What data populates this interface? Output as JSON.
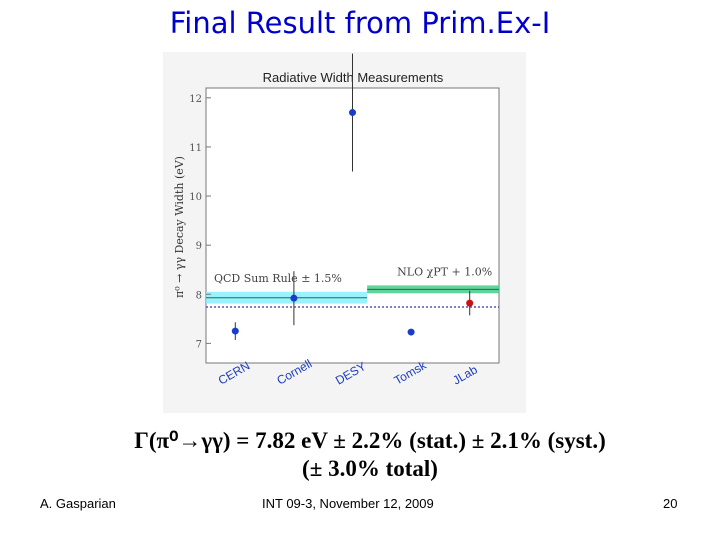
{
  "slide": {
    "title": "Final Result from Prim.Ex-I",
    "result_line_1": "Γ(π⁰→γγ) = 7.82 eV ± 2.2% (stat.) ± 2.1% (syst.)",
    "result_line_2": "(± 3.0% total)",
    "footer_author": "A. Gasparian",
    "footer_event": "INT 09-3, November 12, 2009",
    "footer_page": "20"
  },
  "chart_data": {
    "type": "scatter",
    "title": "Radiative Width Measurements",
    "ylabel": "π⁰ → γγ Decay Width (eV)",
    "ylim": [
      6.6,
      12.2
    ],
    "yticks": [
      7,
      8,
      9,
      10,
      11,
      12
    ],
    "categories": [
      "CERN",
      "Cornell",
      "DESY",
      "Tomsk",
      "JLab"
    ],
    "points": [
      {
        "category": "CERN",
        "value": 7.25,
        "err_low": 0.18,
        "err_high": 0.18,
        "color": "#1a3ccc"
      },
      {
        "category": "Cornell",
        "value": 7.92,
        "err_low": 0.55,
        "err_high": 0.55,
        "color": "#1a3ccc"
      },
      {
        "category": "DESY",
        "value": 11.7,
        "err_low": 1.2,
        "err_high": 1.2,
        "color": "#1a3ccc"
      },
      {
        "category": "Tomsk",
        "value": 7.23,
        "err_low": 0,
        "err_high": 0,
        "color": "#1a3ccc"
      },
      {
        "category": "JLab",
        "value": 7.82,
        "err_low": 0.25,
        "err_high": 0.25,
        "color": "#cc1111"
      }
    ],
    "bands": [
      {
        "label": "QCD Sum Rule ± 1.5%",
        "center": 7.93,
        "half_width": 0.12,
        "from": 0,
        "to": 2.75,
        "color": "#88eeff"
      },
      {
        "label": "NLO χPT + 1.0%",
        "center": 8.1,
        "half_width": 0.08,
        "from": 2.75,
        "to": 5,
        "color": "#44cc88"
      }
    ],
    "reference_line": {
      "value": 7.74,
      "style": "dotted",
      "color": "#3333aa"
    },
    "grid": false
  }
}
